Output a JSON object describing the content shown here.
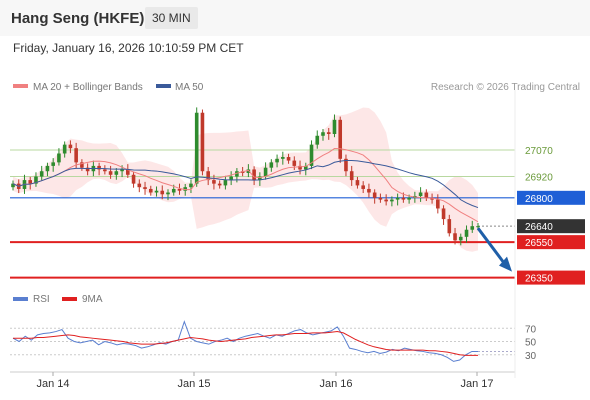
{
  "header": {
    "title": "Hang Seng (HKFE)",
    "timeframe": "30 MIN"
  },
  "datetime": "Friday, January 16, 2026 10:10:59 PM CET",
  "legend": [
    {
      "label": "MA 20 + Bollinger Bands",
      "color": "#f08080"
    },
    {
      "label": "MA 50",
      "color": "#3a5a9a"
    }
  ],
  "credit": "Research © 2026 Trading Central",
  "rsi_legend": [
    {
      "label": "RSI",
      "color": "#5a7fd0"
    },
    {
      "label": "9MA",
      "color": "#e02020"
    }
  ],
  "chart_data": {
    "type": "candlestick",
    "price_range": [
      26280,
      27380
    ],
    "x_ticks": [
      "Jan 14",
      "Jan 15",
      "Jan 16",
      "Jan 17"
    ],
    "price_levels": [
      {
        "value": 27070,
        "label": "27070",
        "style": "green-line"
      },
      {
        "value": 26920,
        "label": "26920",
        "style": "green-line"
      },
      {
        "value": 26800,
        "label": "26800",
        "style": "blue-line",
        "color": "#1f5fd6"
      },
      {
        "value": 26640,
        "label": "26640",
        "style": "last-price",
        "color": "#333333"
      },
      {
        "value": 26550,
        "label": "26550",
        "style": "red-line",
        "color": "#e02020"
      },
      {
        "value": 26350,
        "label": "26350",
        "style": "red-line",
        "color": "#e02020"
      }
    ],
    "closes": [
      26880,
      26850,
      26900,
      26880,
      26920,
      26950,
      26980,
      27000,
      27050,
      27100,
      27080,
      27000,
      26970,
      26950,
      26980,
      26960,
      26950,
      26930,
      26950,
      26960,
      26930,
      26880,
      26860,
      26850,
      26830,
      26840,
      26820,
      26830,
      26850,
      26840,
      26860,
      26880,
      27280,
      26950,
      26900,
      26880,
      26870,
      26900,
      26920,
      26950,
      26940,
      26960,
      26900,
      26920,
      26970,
      27000,
      27020,
      27030,
      27010,
      26980,
      26960,
      26980,
      27100,
      27150,
      27170,
      27160,
      27240,
      27020,
      26950,
      26900,
      26870,
      26850,
      26830,
      26800,
      26790,
      26780,
      26790,
      26800,
      26790,
      26800,
      26810,
      26830,
      26800,
      26790,
      26740,
      26680,
      26600,
      26560,
      26580,
      26620,
      26640,
      26640
    ],
    "rsi": {
      "range": [
        10,
        90
      ],
      "levels": [
        70,
        50,
        30
      ],
      "rsi_values": [
        55,
        50,
        58,
        52,
        60,
        62,
        63,
        65,
        68,
        55,
        50,
        48,
        50,
        52,
        45,
        50,
        48,
        45,
        47,
        46,
        44,
        40,
        42,
        45,
        48,
        46,
        50,
        52,
        80,
        55,
        50,
        48,
        46,
        50,
        52,
        55,
        50,
        55,
        58,
        60,
        62,
        58,
        55,
        60,
        58,
        62,
        66,
        68,
        63,
        60,
        62,
        64,
        66,
        72,
        58,
        40,
        38,
        35,
        33,
        35,
        32,
        34,
        38,
        36,
        40,
        38,
        36,
        35,
        33,
        32,
        30,
        26,
        20,
        22,
        30,
        35,
        35
      ],
      "ma_values": [
        55,
        55,
        55,
        55,
        56,
        56,
        57,
        58,
        59,
        60,
        59,
        57,
        56,
        55,
        54,
        53,
        52,
        51,
        50,
        48,
        47,
        46,
        46,
        46,
        47,
        48,
        50,
        52,
        54,
        56,
        55,
        54,
        52,
        51,
        50,
        51,
        52,
        53,
        54,
        56,
        57,
        58,
        59,
        60,
        60,
        61,
        62,
        62,
        62,
        63,
        63,
        63,
        64,
        65,
        63,
        58,
        53,
        49,
        45,
        42,
        40,
        38,
        37,
        37,
        37,
        37,
        37,
        37,
        36,
        36,
        35,
        34,
        32,
        30,
        29,
        29,
        29
      ]
    }
  }
}
